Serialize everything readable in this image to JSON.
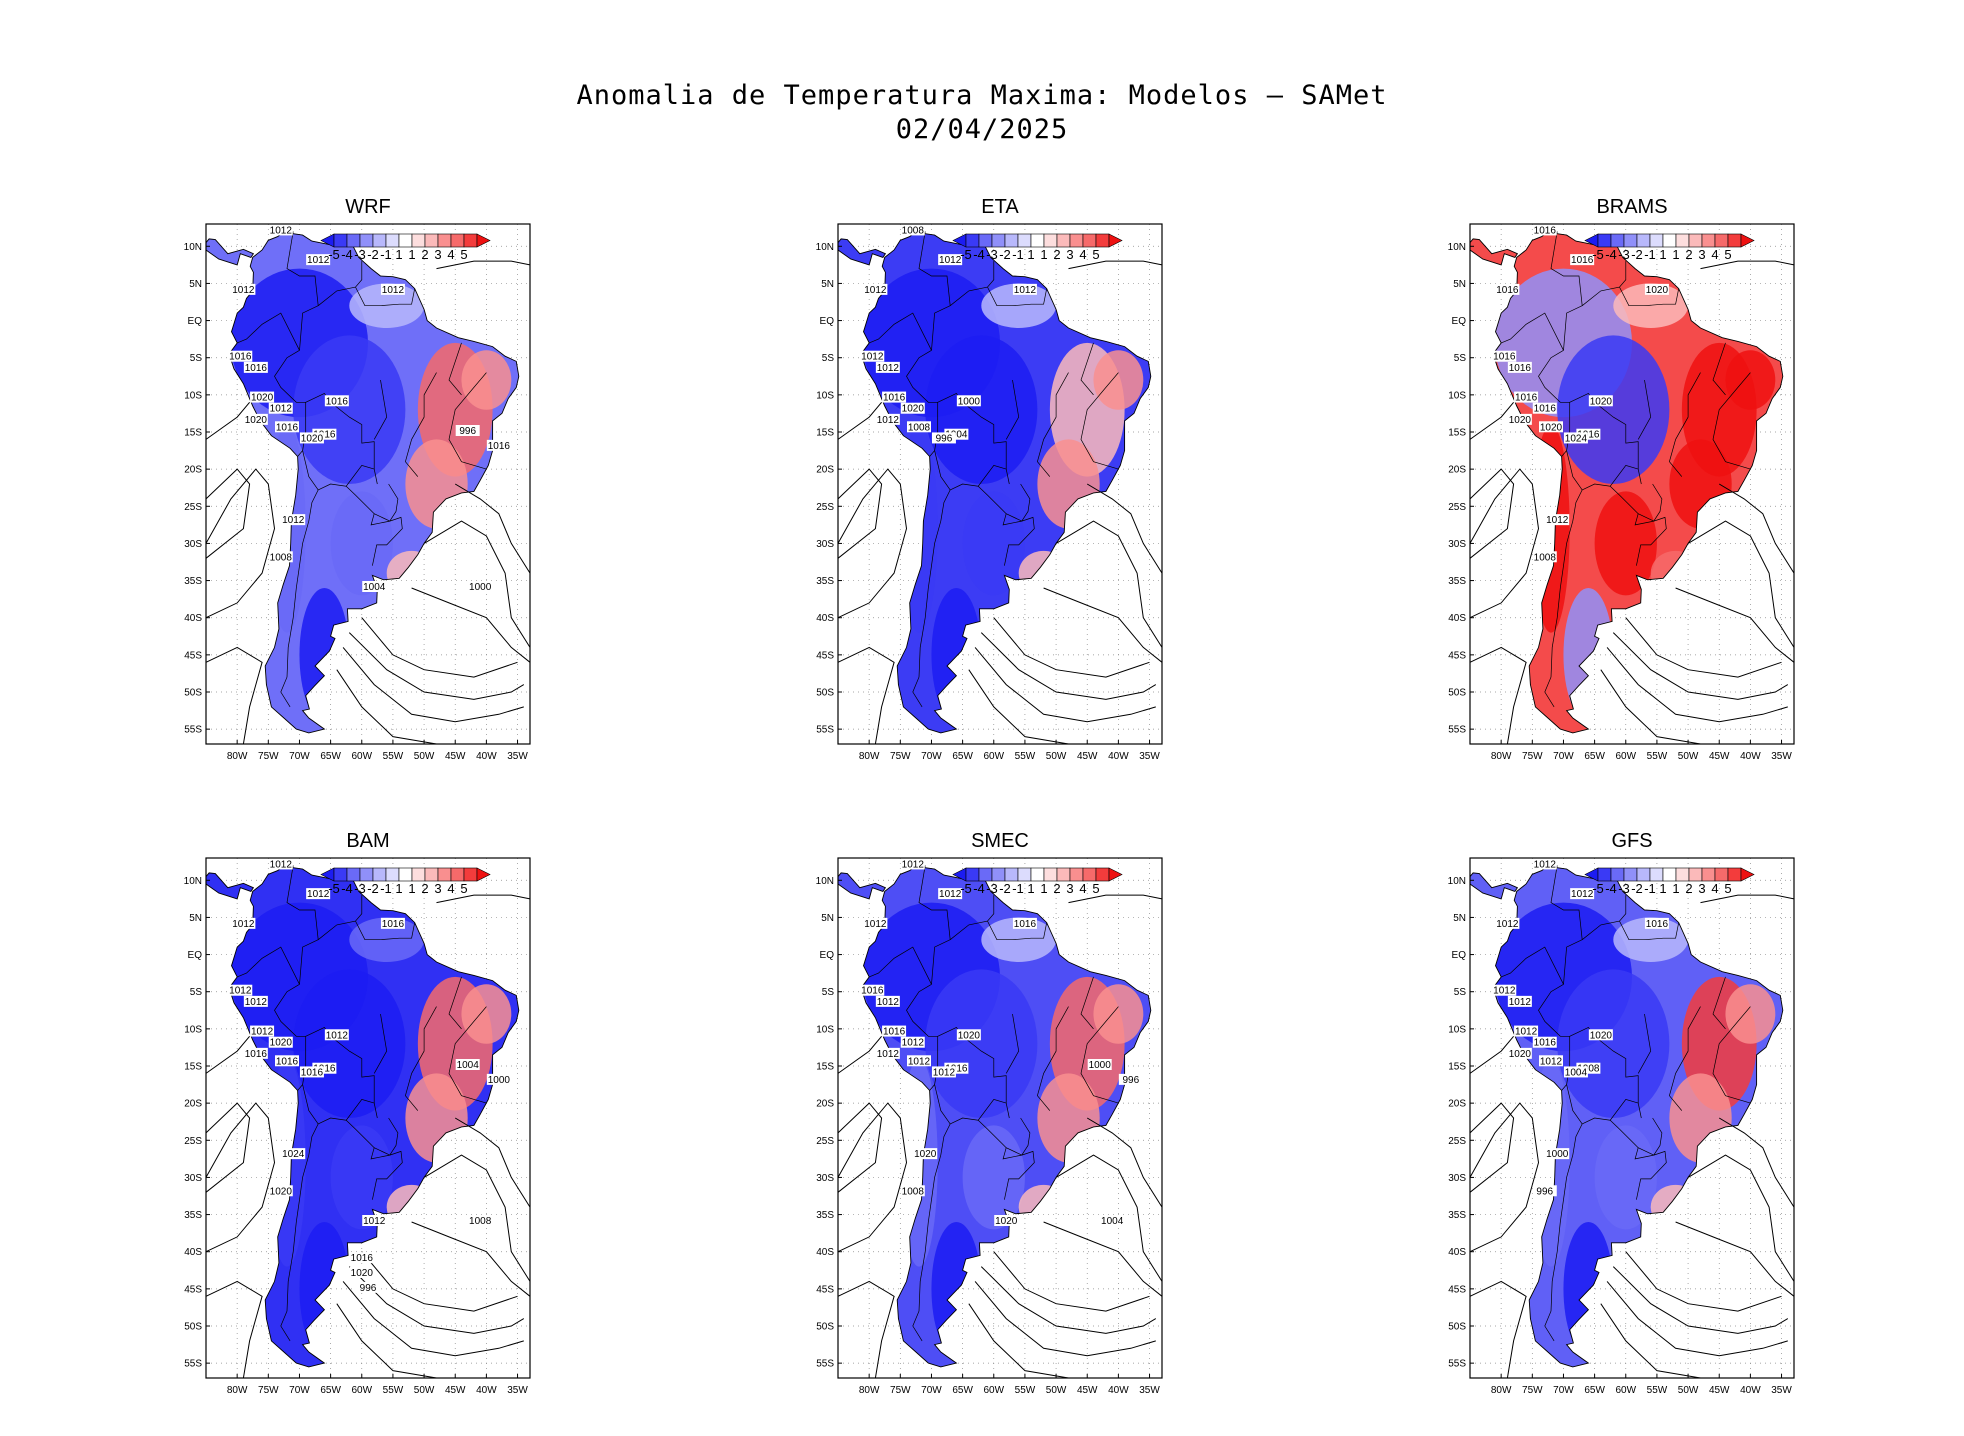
{
  "figure": {
    "title": "Anomalia de Temperatura Maxima: Modelos – SAMet",
    "date": "02/04/2025"
  },
  "axes": {
    "lat_labels": [
      "10N",
      "5N",
      "EQ",
      "5S",
      "10S",
      "15S",
      "20S",
      "25S",
      "30S",
      "35S",
      "40S",
      "45S",
      "50S",
      "55S"
    ],
    "lon_labels": [
      "80W",
      "75W",
      "70W",
      "65W",
      "60W",
      "55W",
      "50W",
      "45W",
      "40W",
      "35W"
    ]
  },
  "colorbar": {
    "labels": [
      "-5",
      "-4",
      "-3",
      "-2",
      "-1",
      "1",
      "1",
      "2",
      "3",
      "4",
      "5"
    ],
    "colors": [
      "#1c1cf2",
      "#3a3af5",
      "#6a6af7",
      "#9090f9",
      "#b8b8fb",
      "#dcdcfd",
      "#ffffff",
      "#fddede",
      "#fbbaba",
      "#f98f8f",
      "#f66a6a",
      "#f33c3c",
      "#ee1111"
    ]
  },
  "panels": [
    {
      "name": "WRF",
      "isobars": [
        "1012",
        "1012",
        "1012",
        "1012",
        "1016",
        "1016",
        "1020",
        "1012",
        "1020",
        "1016",
        "1016",
        "1016",
        "1020",
        "1012",
        "1008",
        "1004",
        "1000",
        "996",
        "1016"
      ]
    },
    {
      "name": "ETA",
      "isobars": [
        "1008",
        "1012",
        "1012",
        "1012",
        "1012",
        "1012",
        "1016",
        "1020",
        "1012",
        "1008",
        "1004",
        "1000",
        "996"
      ]
    },
    {
      "name": "BRAMS",
      "isobars": [
        "1016",
        "1016",
        "1016",
        "1020",
        "1016",
        "1016",
        "1016",
        "1016",
        "1020",
        "1020",
        "1016",
        "1020",
        "1024",
        "1012",
        "1008"
      ]
    },
    {
      "name": "BAM",
      "isobars": [
        "1012",
        "1012",
        "1012",
        "1016",
        "1012",
        "1012",
        "1012",
        "1020",
        "1016",
        "1016",
        "1016",
        "1012",
        "1016",
        "1024",
        "1020",
        "1012",
        "1008",
        "1004",
        "1000",
        "1016",
        "1020",
        "996"
      ]
    },
    {
      "name": "SMEC",
      "isobars": [
        "1012",
        "1012",
        "1012",
        "1016",
        "1016",
        "1012",
        "1016",
        "1012",
        "1012",
        "1012",
        "1016",
        "1020",
        "1012",
        "1020",
        "1008",
        "1020",
        "1004",
        "1000",
        "996"
      ]
    },
    {
      "name": "GFS",
      "isobars": [
        "1012",
        "1012",
        "1012",
        "1016",
        "1012",
        "1012",
        "1012",
        "1016",
        "1020",
        "1012",
        "1008",
        "1020",
        "1004",
        "1000",
        "996"
      ]
    }
  ]
}
